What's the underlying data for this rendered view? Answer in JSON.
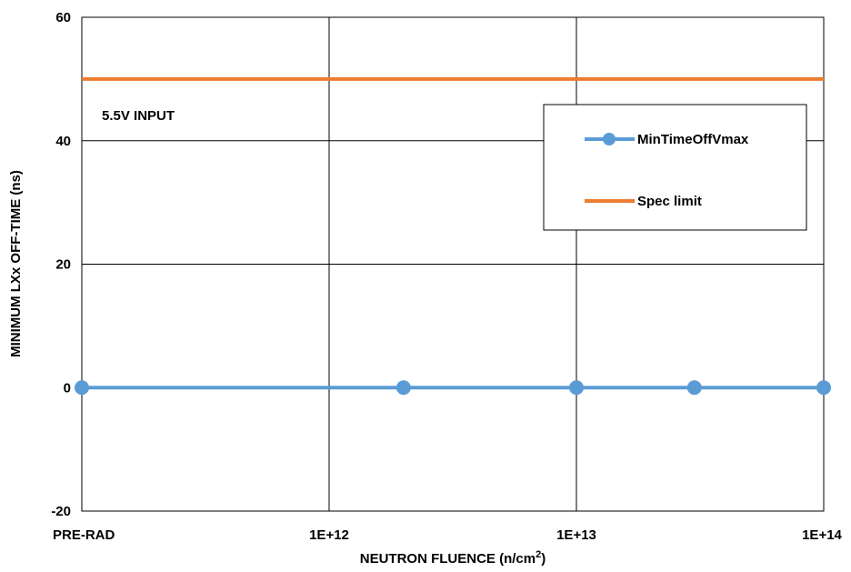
{
  "chart_data": {
    "type": "line",
    "xlabel_main": "NEUTRON FLUENCE (n/cm",
    "xlabel_sup": "2",
    "xlabel_close": ")",
    "ylabel": "MINIMUM LXx OFF-TIME (ns)",
    "annotation": "5.5V INPUT",
    "x_scale": "log",
    "x_categories": [
      "PRE-RAD",
      "1E+12",
      "1E+13",
      "1E+14"
    ],
    "ylim": [
      -20,
      60
    ],
    "yticks": [
      "-20",
      "0",
      "20",
      "40",
      "60"
    ],
    "grid": true,
    "legend_position": "top-right",
    "series": [
      {
        "name": "MinTimeOffVmax",
        "color": "#5b9bd5",
        "marker": "circle",
        "points": [
          {
            "x": "PRE-RAD",
            "y": 0
          },
          {
            "x": 2000000000000.0,
            "y": 0
          },
          {
            "x": 10000000000000.0,
            "y": 0
          },
          {
            "x": 30000000000000.0,
            "y": 0
          },
          {
            "x": 100000000000000.0,
            "y": 0
          }
        ]
      },
      {
        "name": "Spec limit",
        "color": "#ed7d31",
        "marker": "none",
        "points": [
          {
            "x": "PRE-RAD",
            "y": 50
          },
          {
            "x": 100000000000000.0,
            "y": 50
          }
        ]
      }
    ]
  }
}
